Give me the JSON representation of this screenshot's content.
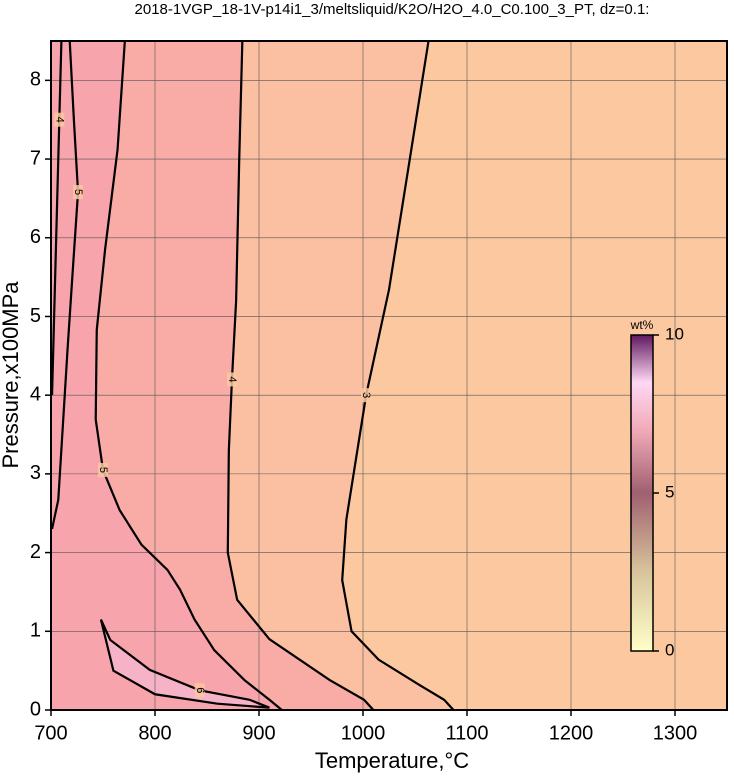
{
  "chart_data": {
    "type": "contour",
    "title": "2018-1VGP_18-1V-p14i1_3/meltsliquid/K2O/H2O_4.0_C0.100_3_PT, dz=0.1:",
    "x_label": "Temperature,°C",
    "y_label": "Pressure,x100MPa",
    "xlim": [
      700,
      1350
    ],
    "ylim": [
      0,
      8.5
    ],
    "xticks": [
      700,
      800,
      900,
      1000,
      1100,
      1200,
      1300
    ],
    "yticks": [
      0,
      1,
      2,
      3,
      4,
      5,
      6,
      7,
      8
    ],
    "grid": true,
    "background": "#fcc8a0",
    "contours": [
      {
        "level": 3,
        "fill": "#fbc0a2",
        "x": [
          1063,
          1045,
          1025,
          1003,
          984,
          980,
          989,
          1015,
          1054,
          1078,
          1087
        ],
        "y": [
          8.5,
          7.0,
          5.34,
          4.0,
          2.42,
          1.65,
          1.0,
          0.64,
          0.32,
          0.13,
          0
        ]
      },
      {
        "level": 4,
        "fill": "#f9aca6",
        "x": [
          884,
          881,
          878,
          874,
          871,
          870,
          879,
          910,
          968,
          1001,
          1010
        ],
        "y": [
          8.5,
          7.0,
          5.2,
          4.2,
          3.3,
          2.0,
          1.4,
          0.9,
          0.38,
          0.13,
          0
        ]
      },
      {
        "level": 5,
        "fill": "#f7a4ac",
        "x": [
          771,
          764,
          752,
          744,
          743,
          750,
          766,
          787,
          812,
          824,
          838,
          857,
          886,
          910,
          922
        ],
        "y": [
          8.5,
          7.12,
          5.85,
          4.83,
          3.69,
          3.05,
          2.54,
          2.1,
          1.78,
          1.53,
          1.15,
          0.76,
          0.38,
          0.13,
          0
        ]
      },
      {
        "level": 6,
        "fill": "#f6b2c6",
        "x": [
          748,
          757,
          795,
          843,
          891,
          910,
          860,
          800,
          760,
          748
        ],
        "y": [
          1.15,
          0.89,
          0.51,
          0.25,
          0.13,
          0.03,
          0.08,
          0.2,
          0.5,
          1.15
        ]
      },
      {
        "level": 4,
        "x": [
          710,
          708,
          706,
          703,
          701
        ],
        "y": [
          8.5,
          7.5,
          6.5,
          5.0,
          4.0
        ]
      },
      {
        "level": 5,
        "x": [
          718,
          722,
          726,
          721,
          716,
          707,
          701
        ],
        "y": [
          8.5,
          7.5,
          6.58,
          5.6,
          4.6,
          2.67,
          2.3
        ]
      }
    ],
    "colorbar": {
      "label": "wt%",
      "lim": [
        0,
        10
      ],
      "ticks": [
        0,
        5,
        10
      ]
    }
  }
}
